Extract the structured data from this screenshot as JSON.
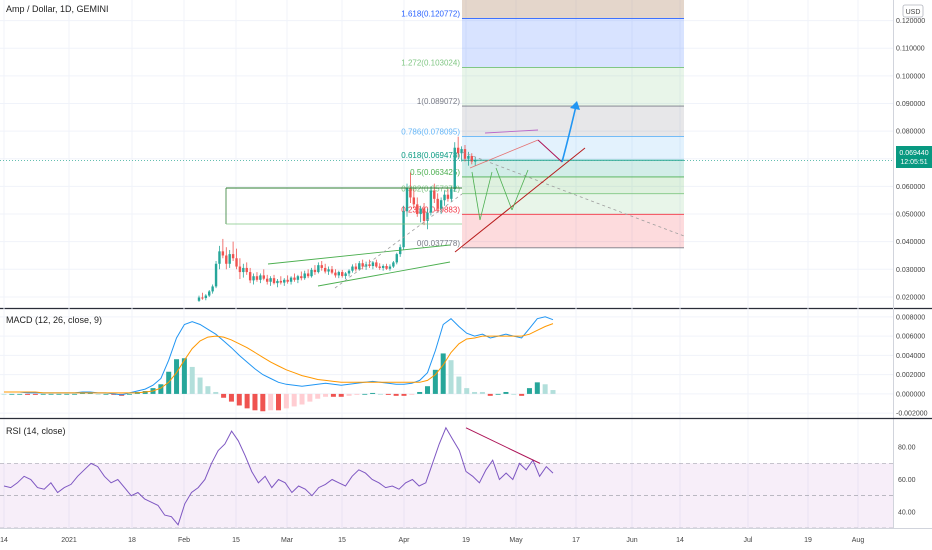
{
  "header": {
    "symbol_title": "Amp / Dollar, 1D, GEMINI",
    "currency_button": "USD",
    "last_price": "0.069440",
    "countdown": "12:05:51"
  },
  "chart_data": [
    {
      "type": "candlestick",
      "title": "Amp / Dollar, 1D, GEMINI",
      "ylabel": "USD",
      "y_scale": "linear",
      "ylim": [
        0.016,
        0.126
      ],
      "y_ticks": [
        "0.120000",
        "0.110000",
        "0.100000",
        "0.090000",
        "0.080000",
        "0.070000",
        "0.060000",
        "0.050000",
        "0.040000",
        "0.030000",
        "0.020000"
      ],
      "x_ticks": [
        "14",
        "2021",
        "18",
        "Feb",
        "15",
        "Mar",
        "15",
        "Apr",
        "19",
        "May",
        "17",
        "Jun",
        "14",
        "Jul",
        "19",
        "Aug"
      ],
      "last_price": 0.06944,
      "fib_levels": [
        {
          "ratio_label": "0",
          "price": 0.037778,
          "label": "0(0.037778)",
          "color": "#787b86"
        },
        {
          "ratio_label": "0.236",
          "price": 0.049883,
          "label": "0.236(0.049883)",
          "color": "#f23645"
        },
        {
          "ratio_label": "0.382",
          "price": 0.057372,
          "label": "0.382(0.057372)",
          "color": "#81c784"
        },
        {
          "ratio_label": "0.5",
          "price": 0.063425,
          "label": "0.5(0.063425)",
          "color": "#4caf50"
        },
        {
          "ratio_label": "0.618",
          "price": 0.069478,
          "label": "0.618(0.069478)",
          "color": "#089981"
        },
        {
          "ratio_label": "0.786",
          "price": 0.078095,
          "label": "0.786(0.078095)",
          "color": "#64b5f6"
        },
        {
          "ratio_label": "1",
          "price": 0.089072,
          "label": "1(0.089072)",
          "color": "#787b86"
        },
        {
          "ratio_label": "1.272",
          "price": 0.103024,
          "label": "1.272(0.103024)",
          "color": "#81c784"
        },
        {
          "ratio_label": "1.618",
          "price": 0.120772,
          "label": "1.618(0.120772)",
          "color": "#2962ff"
        }
      ],
      "candles": [
        {
          "x": "Feb 10",
          "o": 0.0186,
          "h": 0.0205,
          "l": 0.0182,
          "c": 0.0198
        },
        {
          "x": "Feb 11",
          "o": 0.0198,
          "h": 0.0215,
          "l": 0.019,
          "c": 0.0196
        },
        {
          "x": "Feb 12",
          "o": 0.0196,
          "h": 0.021,
          "l": 0.0188,
          "c": 0.0205
        },
        {
          "x": "Feb 13",
          "o": 0.0205,
          "h": 0.0225,
          "l": 0.02,
          "c": 0.022
        },
        {
          "x": "Feb 14",
          "o": 0.022,
          "h": 0.0245,
          "l": 0.0212,
          "c": 0.0238
        },
        {
          "x": "Feb 15",
          "o": 0.0238,
          "h": 0.033,
          "l": 0.0232,
          "c": 0.032
        },
        {
          "x": "Feb 16",
          "o": 0.032,
          "h": 0.0385,
          "l": 0.03,
          "c": 0.0365
        },
        {
          "x": "Feb 17",
          "o": 0.0365,
          "h": 0.041,
          "l": 0.034,
          "c": 0.035
        },
        {
          "x": "Feb 18",
          "o": 0.035,
          "h": 0.038,
          "l": 0.03,
          "c": 0.032
        },
        {
          "x": "Feb 19",
          "o": 0.032,
          "h": 0.037,
          "l": 0.0305,
          "c": 0.0355
        },
        {
          "x": "Feb 20",
          "o": 0.0355,
          "h": 0.04,
          "l": 0.033,
          "c": 0.034
        },
        {
          "x": "Feb 21",
          "o": 0.034,
          "h": 0.0375,
          "l": 0.03,
          "c": 0.031
        },
        {
          "x": "Feb 22",
          "o": 0.031,
          "h": 0.034,
          "l": 0.0265,
          "c": 0.029
        },
        {
          "x": "Feb 23",
          "o": 0.029,
          "h": 0.032,
          "l": 0.027,
          "c": 0.0305
        },
        {
          "x": "Feb 24",
          "o": 0.0305,
          "h": 0.0325,
          "l": 0.028,
          "c": 0.029
        },
        {
          "x": "Feb 25",
          "o": 0.029,
          "h": 0.0305,
          "l": 0.025,
          "c": 0.026
        },
        {
          "x": "Feb 26",
          "o": 0.026,
          "h": 0.0285,
          "l": 0.0245,
          "c": 0.0275
        },
        {
          "x": "Feb 27",
          "o": 0.0275,
          "h": 0.029,
          "l": 0.0255,
          "c": 0.0262
        },
        {
          "x": "Feb 28",
          "o": 0.0262,
          "h": 0.0285,
          "l": 0.025,
          "c": 0.0278
        },
        {
          "x": "Mar 1",
          "o": 0.0278,
          "h": 0.03,
          "l": 0.026,
          "c": 0.0266
        },
        {
          "x": "Mar 2",
          "o": 0.0266,
          "h": 0.028,
          "l": 0.0245,
          "c": 0.0255
        },
        {
          "x": "Mar 3",
          "o": 0.0255,
          "h": 0.0275,
          "l": 0.024,
          "c": 0.0268
        },
        {
          "x": "Mar 4",
          "o": 0.0268,
          "h": 0.028,
          "l": 0.0245,
          "c": 0.025
        },
        {
          "x": "Mar 5",
          "o": 0.025,
          "h": 0.0265,
          "l": 0.0235,
          "c": 0.0258
        },
        {
          "x": "Mar 6",
          "o": 0.0258,
          "h": 0.0275,
          "l": 0.0245,
          "c": 0.0252
        },
        {
          "x": "Mar 7",
          "o": 0.0252,
          "h": 0.0268,
          "l": 0.024,
          "c": 0.0262
        },
        {
          "x": "Mar 8",
          "o": 0.0262,
          "h": 0.0278,
          "l": 0.0248,
          "c": 0.0255
        },
        {
          "x": "Mar 9",
          "o": 0.0255,
          "h": 0.0275,
          "l": 0.0245,
          "c": 0.027
        },
        {
          "x": "Mar 10",
          "o": 0.027,
          "h": 0.0285,
          "l": 0.0255,
          "c": 0.0262
        },
        {
          "x": "Mar 11",
          "o": 0.0262,
          "h": 0.028,
          "l": 0.025,
          "c": 0.0275
        },
        {
          "x": "Mar 12",
          "o": 0.0275,
          "h": 0.0292,
          "l": 0.026,
          "c": 0.0268
        },
        {
          "x": "Mar 13",
          "o": 0.0268,
          "h": 0.0295,
          "l": 0.0262,
          "c": 0.0285
        },
        {
          "x": "Mar 14",
          "o": 0.0285,
          "h": 0.03,
          "l": 0.0268,
          "c": 0.0275
        },
        {
          "x": "Mar 15",
          "o": 0.0275,
          "h": 0.0305,
          "l": 0.027,
          "c": 0.0298
        },
        {
          "x": "Mar 16",
          "o": 0.0298,
          "h": 0.0315,
          "l": 0.028,
          "c": 0.029
        },
        {
          "x": "Mar 17",
          "o": 0.029,
          "h": 0.0325,
          "l": 0.0285,
          "c": 0.0315
        },
        {
          "x": "Mar 18",
          "o": 0.0315,
          "h": 0.033,
          "l": 0.0295,
          "c": 0.0305
        },
        {
          "x": "Mar 19",
          "o": 0.0305,
          "h": 0.032,
          "l": 0.0285,
          "c": 0.0292
        },
        {
          "x": "Mar 20",
          "o": 0.0292,
          "h": 0.031,
          "l": 0.028,
          "c": 0.03
        },
        {
          "x": "Mar 21",
          "o": 0.03,
          "h": 0.0312,
          "l": 0.0282,
          "c": 0.0288
        },
        {
          "x": "Mar 22",
          "o": 0.0288,
          "h": 0.03,
          "l": 0.027,
          "c": 0.0278
        },
        {
          "x": "Mar 23",
          "o": 0.0278,
          "h": 0.0295,
          "l": 0.0268,
          "c": 0.029
        },
        {
          "x": "Mar 24",
          "o": 0.029,
          "h": 0.0298,
          "l": 0.027,
          "c": 0.0276
        },
        {
          "x": "Mar 25",
          "o": 0.0276,
          "h": 0.029,
          "l": 0.0265,
          "c": 0.0285
        },
        {
          "x": "Mar 26",
          "o": 0.0285,
          "h": 0.03,
          "l": 0.0275,
          "c": 0.0295
        },
        {
          "x": "Mar 27",
          "o": 0.0295,
          "h": 0.0318,
          "l": 0.0288,
          "c": 0.031
        },
        {
          "x": "Mar 28",
          "o": 0.031,
          "h": 0.0322,
          "l": 0.0292,
          "c": 0.03
        },
        {
          "x": "Mar 29",
          "o": 0.03,
          "h": 0.033,
          "l": 0.0295,
          "c": 0.0322
        },
        {
          "x": "Mar 30",
          "o": 0.0322,
          "h": 0.0335,
          "l": 0.03,
          "c": 0.031
        },
        {
          "x": "Mar 31",
          "o": 0.031,
          "h": 0.0328,
          "l": 0.0298,
          "c": 0.0318
        },
        {
          "x": "Apr 1",
          "o": 0.0318,
          "h": 0.0335,
          "l": 0.0305,
          "c": 0.0312
        },
        {
          "x": "Apr 2",
          "o": 0.0312,
          "h": 0.033,
          "l": 0.03,
          "c": 0.0325
        },
        {
          "x": "Apr 3",
          "o": 0.0325,
          "h": 0.0335,
          "l": 0.0305,
          "c": 0.031
        },
        {
          "x": "Apr 4",
          "o": 0.031,
          "h": 0.0322,
          "l": 0.0298,
          "c": 0.0305
        },
        {
          "x": "Apr 5",
          "o": 0.0305,
          "h": 0.0318,
          "l": 0.0295,
          "c": 0.0312
        },
        {
          "x": "Apr 6",
          "o": 0.0312,
          "h": 0.032,
          "l": 0.0298,
          "c": 0.0302
        },
        {
          "x": "Apr 7",
          "o": 0.0302,
          "h": 0.0318,
          "l": 0.0295,
          "c": 0.031
        },
        {
          "x": "Apr 8",
          "o": 0.031,
          "h": 0.033,
          "l": 0.0305,
          "c": 0.0325
        },
        {
          "x": "Apr 9",
          "o": 0.0325,
          "h": 0.036,
          "l": 0.0318,
          "c": 0.0355
        },
        {
          "x": "Apr 10",
          "o": 0.0355,
          "h": 0.039,
          "l": 0.0345,
          "c": 0.038
        },
        {
          "x": "Apr 11",
          "o": 0.038,
          "h": 0.053,
          "l": 0.037,
          "c": 0.051
        },
        {
          "x": "Apr 12",
          "o": 0.051,
          "h": 0.061,
          "l": 0.049,
          "c": 0.0595
        },
        {
          "x": "Apr 13",
          "o": 0.0595,
          "h": 0.065,
          "l": 0.054,
          "c": 0.056
        },
        {
          "x": "Apr 14",
          "o": 0.056,
          "h": 0.059,
          "l": 0.052,
          "c": 0.0535
        },
        {
          "x": "Apr 15",
          "o": 0.0535,
          "h": 0.056,
          "l": 0.049,
          "c": 0.05
        },
        {
          "x": "Apr 16",
          "o": 0.05,
          "h": 0.053,
          "l": 0.047,
          "c": 0.052
        },
        {
          "x": "Apr 17",
          "o": 0.052,
          "h": 0.054,
          "l": 0.046,
          "c": 0.0475
        },
        {
          "x": "Apr 18",
          "o": 0.0475,
          "h": 0.052,
          "l": 0.0445,
          "c": 0.0505
        },
        {
          "x": "Apr 19",
          "o": 0.0505,
          "h": 0.06,
          "l": 0.0495,
          "c": 0.0585
        },
        {
          "x": "Apr 20",
          "o": 0.0585,
          "h": 0.061,
          "l": 0.054,
          "c": 0.0555
        },
        {
          "x": "Apr 21",
          "o": 0.0555,
          "h": 0.0575,
          "l": 0.0505,
          "c": 0.052
        },
        {
          "x": "Apr 22",
          "o": 0.052,
          "h": 0.056,
          "l": 0.05,
          "c": 0.055
        },
        {
          "x": "Apr 23",
          "o": 0.055,
          "h": 0.0585,
          "l": 0.053,
          "c": 0.057
        },
        {
          "x": "Apr 24",
          "o": 0.057,
          "h": 0.059,
          "l": 0.0545,
          "c": 0.0555
        },
        {
          "x": "Apr 25",
          "o": 0.0555,
          "h": 0.06,
          "l": 0.0545,
          "c": 0.059
        },
        {
          "x": "Apr 26",
          "o": 0.059,
          "h": 0.076,
          "l": 0.058,
          "c": 0.074
        },
        {
          "x": "Apr 27",
          "o": 0.074,
          "h": 0.078,
          "l": 0.0705,
          "c": 0.072
        },
        {
          "x": "Apr 28",
          "o": 0.072,
          "h": 0.0745,
          "l": 0.069,
          "c": 0.0735
        },
        {
          "x": "Apr 29",
          "o": 0.0735,
          "h": 0.075,
          "l": 0.069,
          "c": 0.07
        },
        {
          "x": "Apr 30",
          "o": 0.07,
          "h": 0.0725,
          "l": 0.0675,
          "c": 0.071
        },
        {
          "x": "May 1",
          "o": 0.071,
          "h": 0.072,
          "l": 0.068,
          "c": 0.069
        },
        {
          "x": "May 2",
          "o": 0.069,
          "h": 0.0705,
          "l": 0.0675,
          "c": 0.0694
        }
      ],
      "annotations": [
        "0(0.037778)",
        "0.236(0.049883)",
        "0.382(0.057372)",
        "0.5(0.063425)",
        "0.618(0.069478)",
        "0.786(0.078095)",
        "1(0.089072)",
        "1.272(0.103024)",
        "1.618(0.120772)"
      ]
    },
    {
      "type": "line",
      "title": "MACD (12, 26, close, 9)",
      "ylim": [
        -0.0025,
        0.0085
      ],
      "y_ticks": [
        "0.008000",
        "0.006000",
        "0.004000",
        "0.002000",
        "0.000000",
        "-0.002000"
      ],
      "series": [
        {
          "name": "MACD",
          "color": "#2196f3",
          "values": [
            0.0002,
            0.0002,
            0.0002,
            0.0001,
            0.0001,
            0.0001,
            0.0001,
            0.0001,
            0.0001,
            0.0001,
            0.0002,
            0.0002,
            0.0001,
            0.0001,
            0.0,
            -0.0001,
            0.0001,
            0.0003,
            0.0005,
            0.0009,
            0.0016,
            0.0035,
            0.0058,
            0.0072,
            0.0075,
            0.0072,
            0.0067,
            0.0062,
            0.0055,
            0.0048,
            0.004,
            0.0033,
            0.0026,
            0.002,
            0.0016,
            0.0012,
            0.001,
            0.0009,
            0.0008,
            0.0009,
            0.001,
            0.0011,
            0.001,
            0.0009,
            0.001,
            0.0011,
            0.0012,
            0.0013,
            0.0012,
            0.0011,
            0.001,
            0.001,
            0.0011,
            0.0014,
            0.0022,
            0.0045,
            0.0072,
            0.0078,
            0.007,
            0.0063,
            0.006,
            0.0062,
            0.0058,
            0.006,
            0.0062,
            0.006,
            0.0058,
            0.0068,
            0.0078,
            0.008,
            0.0077
          ]
        },
        {
          "name": "Signal",
          "color": "#ff9800",
          "values": [
            0.0002,
            0.0002,
            0.0002,
            0.0002,
            0.0002,
            0.0001,
            0.0001,
            0.0001,
            0.0001,
            0.0001,
            0.0001,
            0.0001,
            0.0001,
            0.0001,
            0.0001,
            0.0001,
            0.0001,
            0.0001,
            0.0002,
            0.0003,
            0.0006,
            0.0012,
            0.0022,
            0.0035,
            0.0047,
            0.0055,
            0.0059,
            0.006,
            0.0059,
            0.0056,
            0.0052,
            0.0048,
            0.0043,
            0.0038,
            0.0033,
            0.0029,
            0.0025,
            0.0022,
            0.0019,
            0.0017,
            0.0015,
            0.0014,
            0.0013,
            0.0012,
            0.0012,
            0.0012,
            0.0012,
            0.0012,
            0.0012,
            0.0012,
            0.0012,
            0.0012,
            0.0012,
            0.0012,
            0.0014,
            0.002,
            0.003,
            0.0043,
            0.0052,
            0.0057,
            0.0058,
            0.006,
            0.006,
            0.006,
            0.006,
            0.006,
            0.006,
            0.0062,
            0.0066,
            0.007,
            0.0073
          ]
        }
      ]
    },
    {
      "type": "line",
      "title": "RSI (14, close)",
      "ylim": [
        30,
        95
      ],
      "y_ticks": [
        "80.00",
        "60.00",
        "40.00"
      ],
      "bands": [
        30,
        70
      ],
      "series": [
        {
          "name": "RSI",
          "color": "#7e57c2",
          "values": [
            56,
            55,
            58,
            62,
            60,
            55,
            54,
            58,
            52,
            55,
            57,
            62,
            66,
            70,
            68,
            62,
            58,
            60,
            55,
            50,
            52,
            48,
            46,
            44,
            38,
            37,
            32,
            45,
            52,
            55,
            60,
            70,
            78,
            82,
            90,
            84,
            75,
            65,
            58,
            62,
            55,
            60,
            58,
            52,
            56,
            54,
            50,
            55,
            57,
            60,
            58,
            56,
            62,
            66,
            64,
            60,
            58,
            55,
            56,
            54,
            58,
            60,
            56,
            58,
            70,
            82,
            92,
            85,
            78,
            65,
            62,
            58,
            66,
            72,
            60,
            64,
            60,
            70,
            66,
            72,
            62,
            68,
            64
          ]
        }
      ]
    }
  ]
}
